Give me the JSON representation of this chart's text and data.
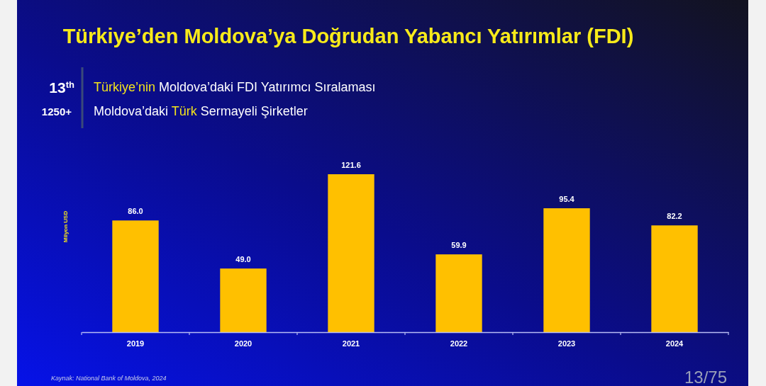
{
  "chart_data": {
    "type": "bar",
    "title": "Türkiye’den Moldova’ya Doğrudan Yabancı Yatırımlar (FDI)",
    "ylabel": "Milyon USD",
    "categories": [
      "2019",
      "2020",
      "2021",
      "2022",
      "2023",
      "2024"
    ],
    "values": [
      86.0,
      49.0,
      121.6,
      59.9,
      95.4,
      82.2
    ],
    "value_labels": [
      "86.0",
      "49.0",
      "121.6",
      "59.9",
      "95.4",
      "82.2"
    ],
    "color": "#ffc000",
    "annotations": [
      "13$^{th}$",
      "Türkiye’nin Moldova’daki FDI Yatırımcı Sıralaması",
      "1250+",
      "Moldova’daki Türk Sermayeli Şirketler",
      "Kaynak: National Bank of Moldova, 2024",
      "13/75"
    ]
  }
}
